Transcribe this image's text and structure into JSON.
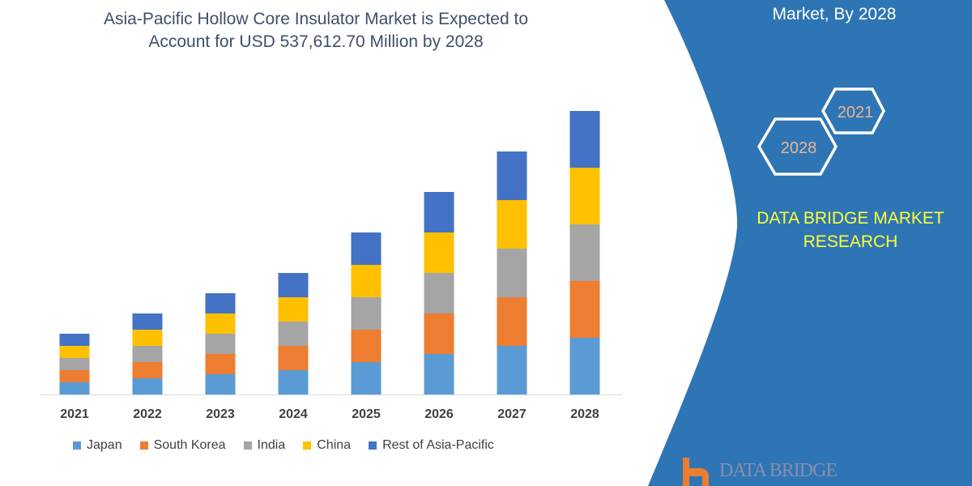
{
  "header": {
    "title_line1": "Asia-Pacific Hollow Core Insulator Market is Expected to",
    "title_line2": "Account for USD 537,612.70 Million by 2028"
  },
  "side_panel": {
    "title": "Market, By 2028",
    "hex_years": [
      "2021",
      "2028"
    ],
    "brand_line1": "DATA BRIDGE MARKET",
    "brand_line2": "RESEARCH",
    "logo_text": "DATA BRIDGE",
    "color": "#2e75b6"
  },
  "chart_data": {
    "type": "bar",
    "stacked": true,
    "categories": [
      "2021",
      "2022",
      "2023",
      "2024",
      "2025",
      "2026",
      "2027",
      "2028"
    ],
    "series": [
      {
        "name": "Japan",
        "color": "#5b9bd5",
        "values": [
          15,
          20,
          25,
          30,
          40,
          50,
          60,
          70
        ]
      },
      {
        "name": "South Korea",
        "color": "#ed7d31",
        "values": [
          15,
          20,
          25,
          30,
          40,
          50,
          60,
          70
        ]
      },
      {
        "name": "India",
        "color": "#a5a5a5",
        "values": [
          15,
          20,
          25,
          30,
          40,
          50,
          60,
          70
        ]
      },
      {
        "name": "China",
        "color": "#ffc000",
        "values": [
          15,
          20,
          25,
          30,
          40,
          50,
          60,
          70
        ]
      },
      {
        "name": "Rest of Asia-Pacific",
        "color": "#4472c4",
        "values": [
          15,
          20,
          25,
          30,
          40,
          50,
          60,
          70
        ]
      }
    ],
    "legend": "bottom",
    "grid": false
  }
}
